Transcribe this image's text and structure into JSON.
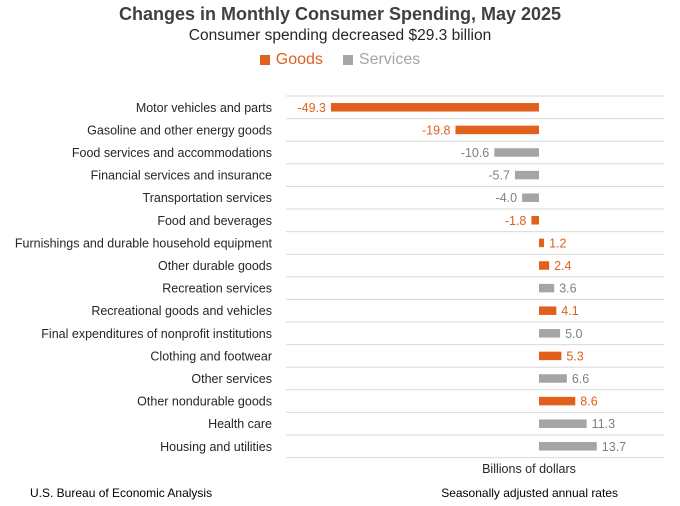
{
  "colors": {
    "goods": "#E0601C",
    "services": "#A5A5A5",
    "grid": "#D9D9D9"
  },
  "chart_data": {
    "type": "bar",
    "orientation": "horizontal",
    "title": "Changes in Monthly Consumer Spending, May 2025",
    "subtitle": "Consumer spending decreased $29.3 billion",
    "xlabel": "Billions of dollars",
    "legend": [
      "Goods",
      "Services"
    ],
    "legend_position": "top",
    "grid": "horizontal lines between categories",
    "categories": [
      "Motor vehicles and parts",
      "Gasoline and other energy goods",
      "Food services and accommodations",
      "Financial services and insurance",
      "Transportation services",
      "Food and beverages",
      "Furnishings and durable household equipment",
      "Other durable goods",
      "Recreation services",
      "Recreational goods and vehicles",
      "Final expenditures of nonprofit institutions",
      "Clothing and footwear",
      "Other services",
      "Other nondurable goods",
      "Health care",
      "Housing and utilities"
    ],
    "values": [
      -49.3,
      -19.8,
      -10.6,
      -5.7,
      -4.0,
      -1.8,
      1.2,
      2.4,
      3.6,
      4.1,
      5.0,
      5.3,
      6.6,
      8.6,
      11.3,
      13.7
    ],
    "value_labels": [
      "-49.3",
      "-19.8",
      "-10.6",
      "-5.7",
      "-4.0",
      "-1.8",
      "1.2",
      "2.4",
      "3.6",
      "4.1",
      "5.0",
      "5.3",
      "6.6",
      "8.6",
      "11.3",
      "13.7"
    ],
    "groups": [
      "Goods",
      "Goods",
      "Services",
      "Services",
      "Services",
      "Goods",
      "Goods",
      "Goods",
      "Services",
      "Goods",
      "Services",
      "Goods",
      "Services",
      "Goods",
      "Services",
      "Services"
    ],
    "xlim": [
      -60,
      30
    ]
  },
  "footer": {
    "source": "U.S. Bureau of Economic Analysis",
    "note": "Seasonally adjusted annual rates"
  }
}
